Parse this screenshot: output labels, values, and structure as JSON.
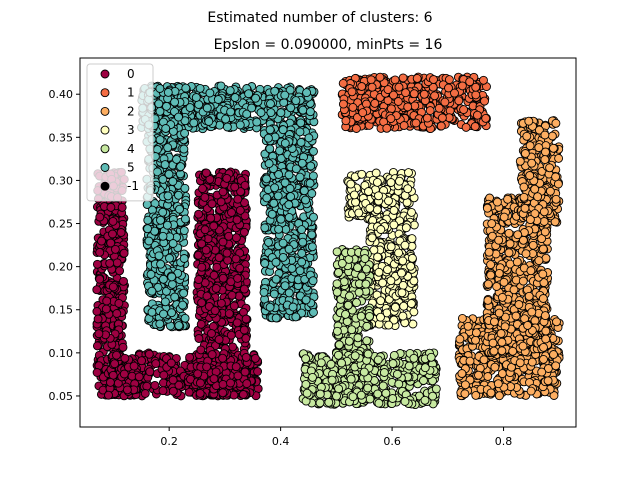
{
  "chart_data": {
    "type": "scatter",
    "suptitle": "Estimated number of clusters: 6",
    "title": "Epslon = 0.090000, minPts = 16",
    "xlabel": "",
    "ylabel": "",
    "xlim": [
      0.04,
      0.93
    ],
    "ylim": [
      0.014,
      0.442
    ],
    "xticks": [
      "0.2",
      "0.4",
      "0.6",
      "0.8"
    ],
    "yticks": [
      "0.05",
      "0.10",
      "0.15",
      "0.20",
      "0.25",
      "0.30",
      "0.35",
      "0.40"
    ],
    "legend_position": "top-left",
    "grid": false,
    "series": [
      {
        "name": "0",
        "color": "#9e0142",
        "regions": [
          [
            0.07,
            0.12,
            0.05,
            0.31
          ],
          [
            0.09,
            0.36,
            0.05,
            0.1
          ],
          [
            0.25,
            0.34,
            0.05,
            0.31
          ]
        ]
      },
      {
        "name": "1",
        "color": "#f46d43",
        "regions": [
          [
            0.51,
            0.77,
            0.36,
            0.42
          ]
        ]
      },
      {
        "name": "2",
        "color": "#fdae61",
        "regions": [
          [
            0.72,
            0.9,
            0.05,
            0.14
          ],
          [
            0.77,
            0.88,
            0.1,
            0.28
          ],
          [
            0.83,
            0.9,
            0.25,
            0.37
          ]
        ]
      },
      {
        "name": "3",
        "color": "#ffffbf",
        "regions": [
          [
            0.52,
            0.64,
            0.25,
            0.31
          ],
          [
            0.56,
            0.64,
            0.13,
            0.25
          ]
        ]
      },
      {
        "name": "4",
        "color": "#c7e9a0",
        "regions": [
          [
            0.5,
            0.56,
            0.05,
            0.22
          ],
          [
            0.44,
            0.68,
            0.04,
            0.1
          ]
        ]
      },
      {
        "name": "5",
        "color": "#5fbcb6",
        "regions": [
          [
            0.15,
            0.46,
            0.36,
            0.41
          ],
          [
            0.16,
            0.23,
            0.13,
            0.41
          ],
          [
            0.37,
            0.46,
            0.14,
            0.36
          ]
        ]
      },
      {
        "name": "-1",
        "color": "#000000",
        "regions": []
      }
    ]
  }
}
